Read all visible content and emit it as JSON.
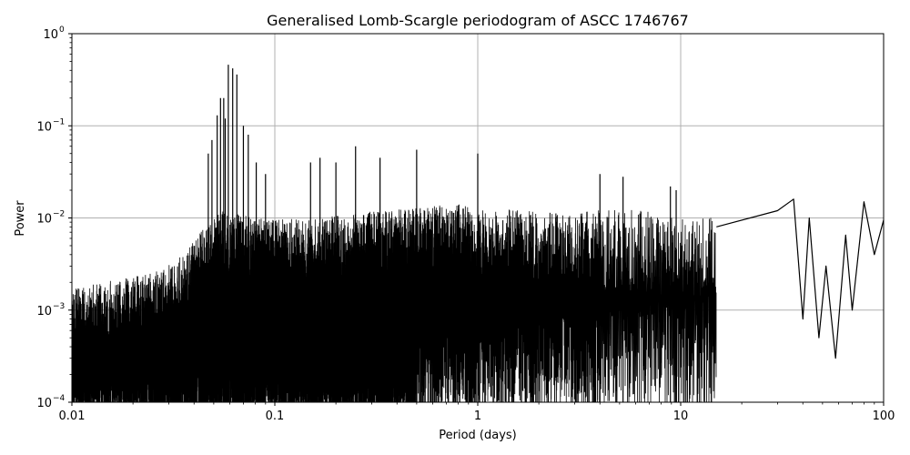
{
  "chart_data": {
    "type": "line",
    "title": "Generalised Lomb-Scargle periodogram of ASCC 1746767",
    "xlabel": "Period (days)",
    "ylabel": "Power",
    "xscale": "log",
    "yscale": "log",
    "xlim": [
      0.01,
      100
    ],
    "ylim": [
      0.0001,
      1
    ],
    "grid": true,
    "colors": {
      "line": "#000000",
      "grid": "#b0b0b0",
      "axes": "#000000"
    },
    "x_ticks": [
      {
        "value": 0.01,
        "label": "0.01"
      },
      {
        "value": 0.1,
        "label": "0.1"
      },
      {
        "value": 1,
        "label": "1"
      },
      {
        "value": 10,
        "label": "10"
      },
      {
        "value": 100,
        "label": "100"
      }
    ],
    "y_ticks": [
      {
        "value": 0.0001,
        "base": "10",
        "exp": "−4"
      },
      {
        "value": 0.001,
        "base": "10",
        "exp": "−3"
      },
      {
        "value": 0.01,
        "base": "10",
        "exp": "−2"
      },
      {
        "value": 0.1,
        "base": "10",
        "exp": "−1"
      },
      {
        "value": 1,
        "base": "10",
        "exp": "0"
      }
    ],
    "peaks": [
      {
        "period": 0.059,
        "power": 0.46
      },
      {
        "period": 0.062,
        "power": 0.42
      },
      {
        "period": 0.065,
        "power": 0.36
      },
      {
        "period": 0.054,
        "power": 0.2
      },
      {
        "period": 0.056,
        "power": 0.2
      },
      {
        "period": 0.052,
        "power": 0.13
      },
      {
        "period": 0.057,
        "power": 0.12
      },
      {
        "period": 0.07,
        "power": 0.1
      },
      {
        "period": 0.074,
        "power": 0.08
      },
      {
        "period": 0.049,
        "power": 0.07
      },
      {
        "period": 0.047,
        "power": 0.05
      },
      {
        "period": 0.081,
        "power": 0.04
      },
      {
        "period": 0.09,
        "power": 0.03
      },
      {
        "period": 0.25,
        "power": 0.06
      },
      {
        "period": 0.5,
        "power": 0.055
      },
      {
        "period": 0.15,
        "power": 0.04
      },
      {
        "period": 0.167,
        "power": 0.045
      },
      {
        "period": 0.2,
        "power": 0.04
      },
      {
        "period": 0.33,
        "power": 0.045
      },
      {
        "period": 1.0,
        "power": 0.05
      },
      {
        "period": 4.0,
        "power": 0.03
      },
      {
        "period": 5.2,
        "power": 0.028
      },
      {
        "period": 8.9,
        "power": 0.022
      },
      {
        "period": 9.5,
        "power": 0.02
      }
    ],
    "smooth_tail": [
      {
        "period": 30,
        "power": 0.012
      },
      {
        "period": 36,
        "power": 0.016
      },
      {
        "period": 40,
        "power": 0.0008
      },
      {
        "period": 43,
        "power": 0.01
      },
      {
        "period": 48,
        "power": 0.0005
      },
      {
        "period": 52,
        "power": 0.003
      },
      {
        "period": 58,
        "power": 0.0003
      },
      {
        "period": 65,
        "power": 0.0065
      },
      {
        "period": 70,
        "power": 0.001
      },
      {
        "period": 80,
        "power": 0.015
      },
      {
        "period": 90,
        "power": 0.004
      },
      {
        "period": 100,
        "power": 0.0095
      }
    ]
  }
}
